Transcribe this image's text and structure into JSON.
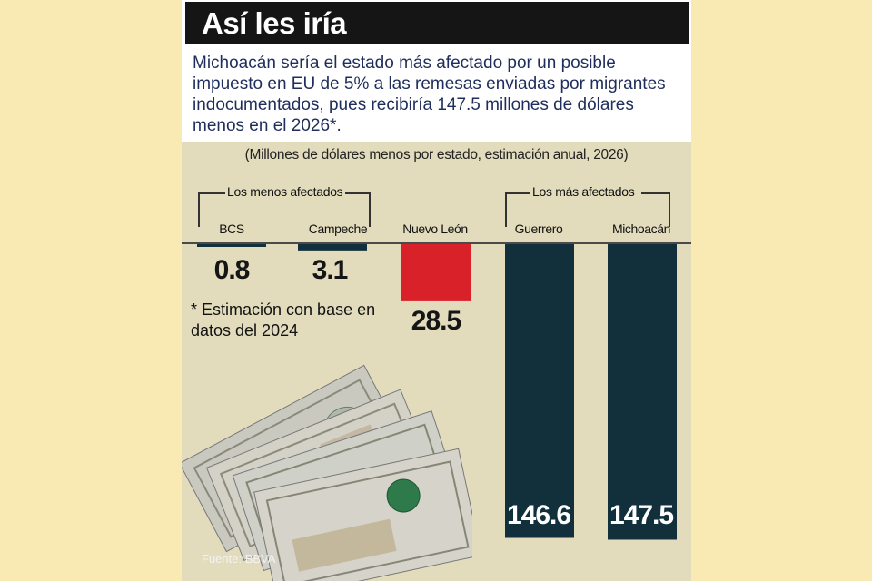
{
  "title": "Así les iría",
  "intro": "Michoacán sería el estado más afectado por un posible impuesto en EU de 5% a las remesas enviadas por migrantes indocumentados, pues recibiría 147.5 millones de dólares menos en el 2026*.",
  "colors": {
    "page_background": "#f9e9b3",
    "panel_background": "#e2dcbc",
    "dark_bar": "#11303b",
    "highlight_bar": "#d82128"
  },
  "chart_data": {
    "type": "bar",
    "title": "Así les iría",
    "subtitle": "(Millones de dólares menos por estado, estimación anual, 2026)",
    "categories": [
      "BCS",
      "Campeche",
      "Nuevo León",
      "Guerrero",
      "Michoacán"
    ],
    "values": [
      0.8,
      3.1,
      28.5,
      146.6,
      147.5
    ],
    "value_labels": [
      "0.8",
      "3.1",
      "28.5",
      "146.6",
      "147.5"
    ],
    "highlight": "Nuevo León",
    "groups": [
      {
        "label": "Los menos afectados",
        "members": [
          "BCS",
          "Campeche"
        ]
      },
      {
        "label": "Los más afectados",
        "members": [
          "Guerrero",
          "Michoacán"
        ]
      }
    ],
    "ylim": [
      0,
      150
    ],
    "orientation": "bars hang downward from baseline",
    "grid": false,
    "note": "* Estimación con base en datos del 2024",
    "source": "Fuente: BBVA"
  }
}
